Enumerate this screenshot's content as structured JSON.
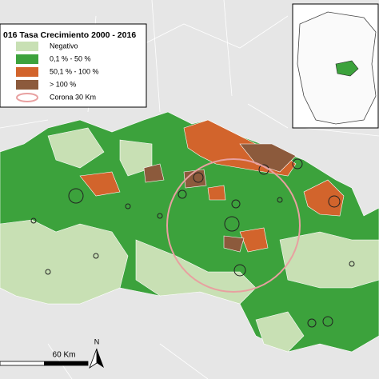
{
  "legend": {
    "title": "016 Tasa Crecimiento 2000 - 2016",
    "items": [
      {
        "label": "Negativo",
        "color": "#c8e0b4"
      },
      {
        "label": "0,1 % - 50 %",
        "color": "#3ca23c"
      },
      {
        "label": "50,1 % - 100 %",
        "color": "#d2642c"
      },
      {
        "label": "> 100 %",
        "color": "#8c5a3c"
      },
      {
        "label": "Corona 30 Km",
        "color": "#e8a0a0"
      }
    ]
  },
  "scale_bar": {
    "label": "60 Km"
  },
  "north_arrow": {
    "label": "N"
  }
}
